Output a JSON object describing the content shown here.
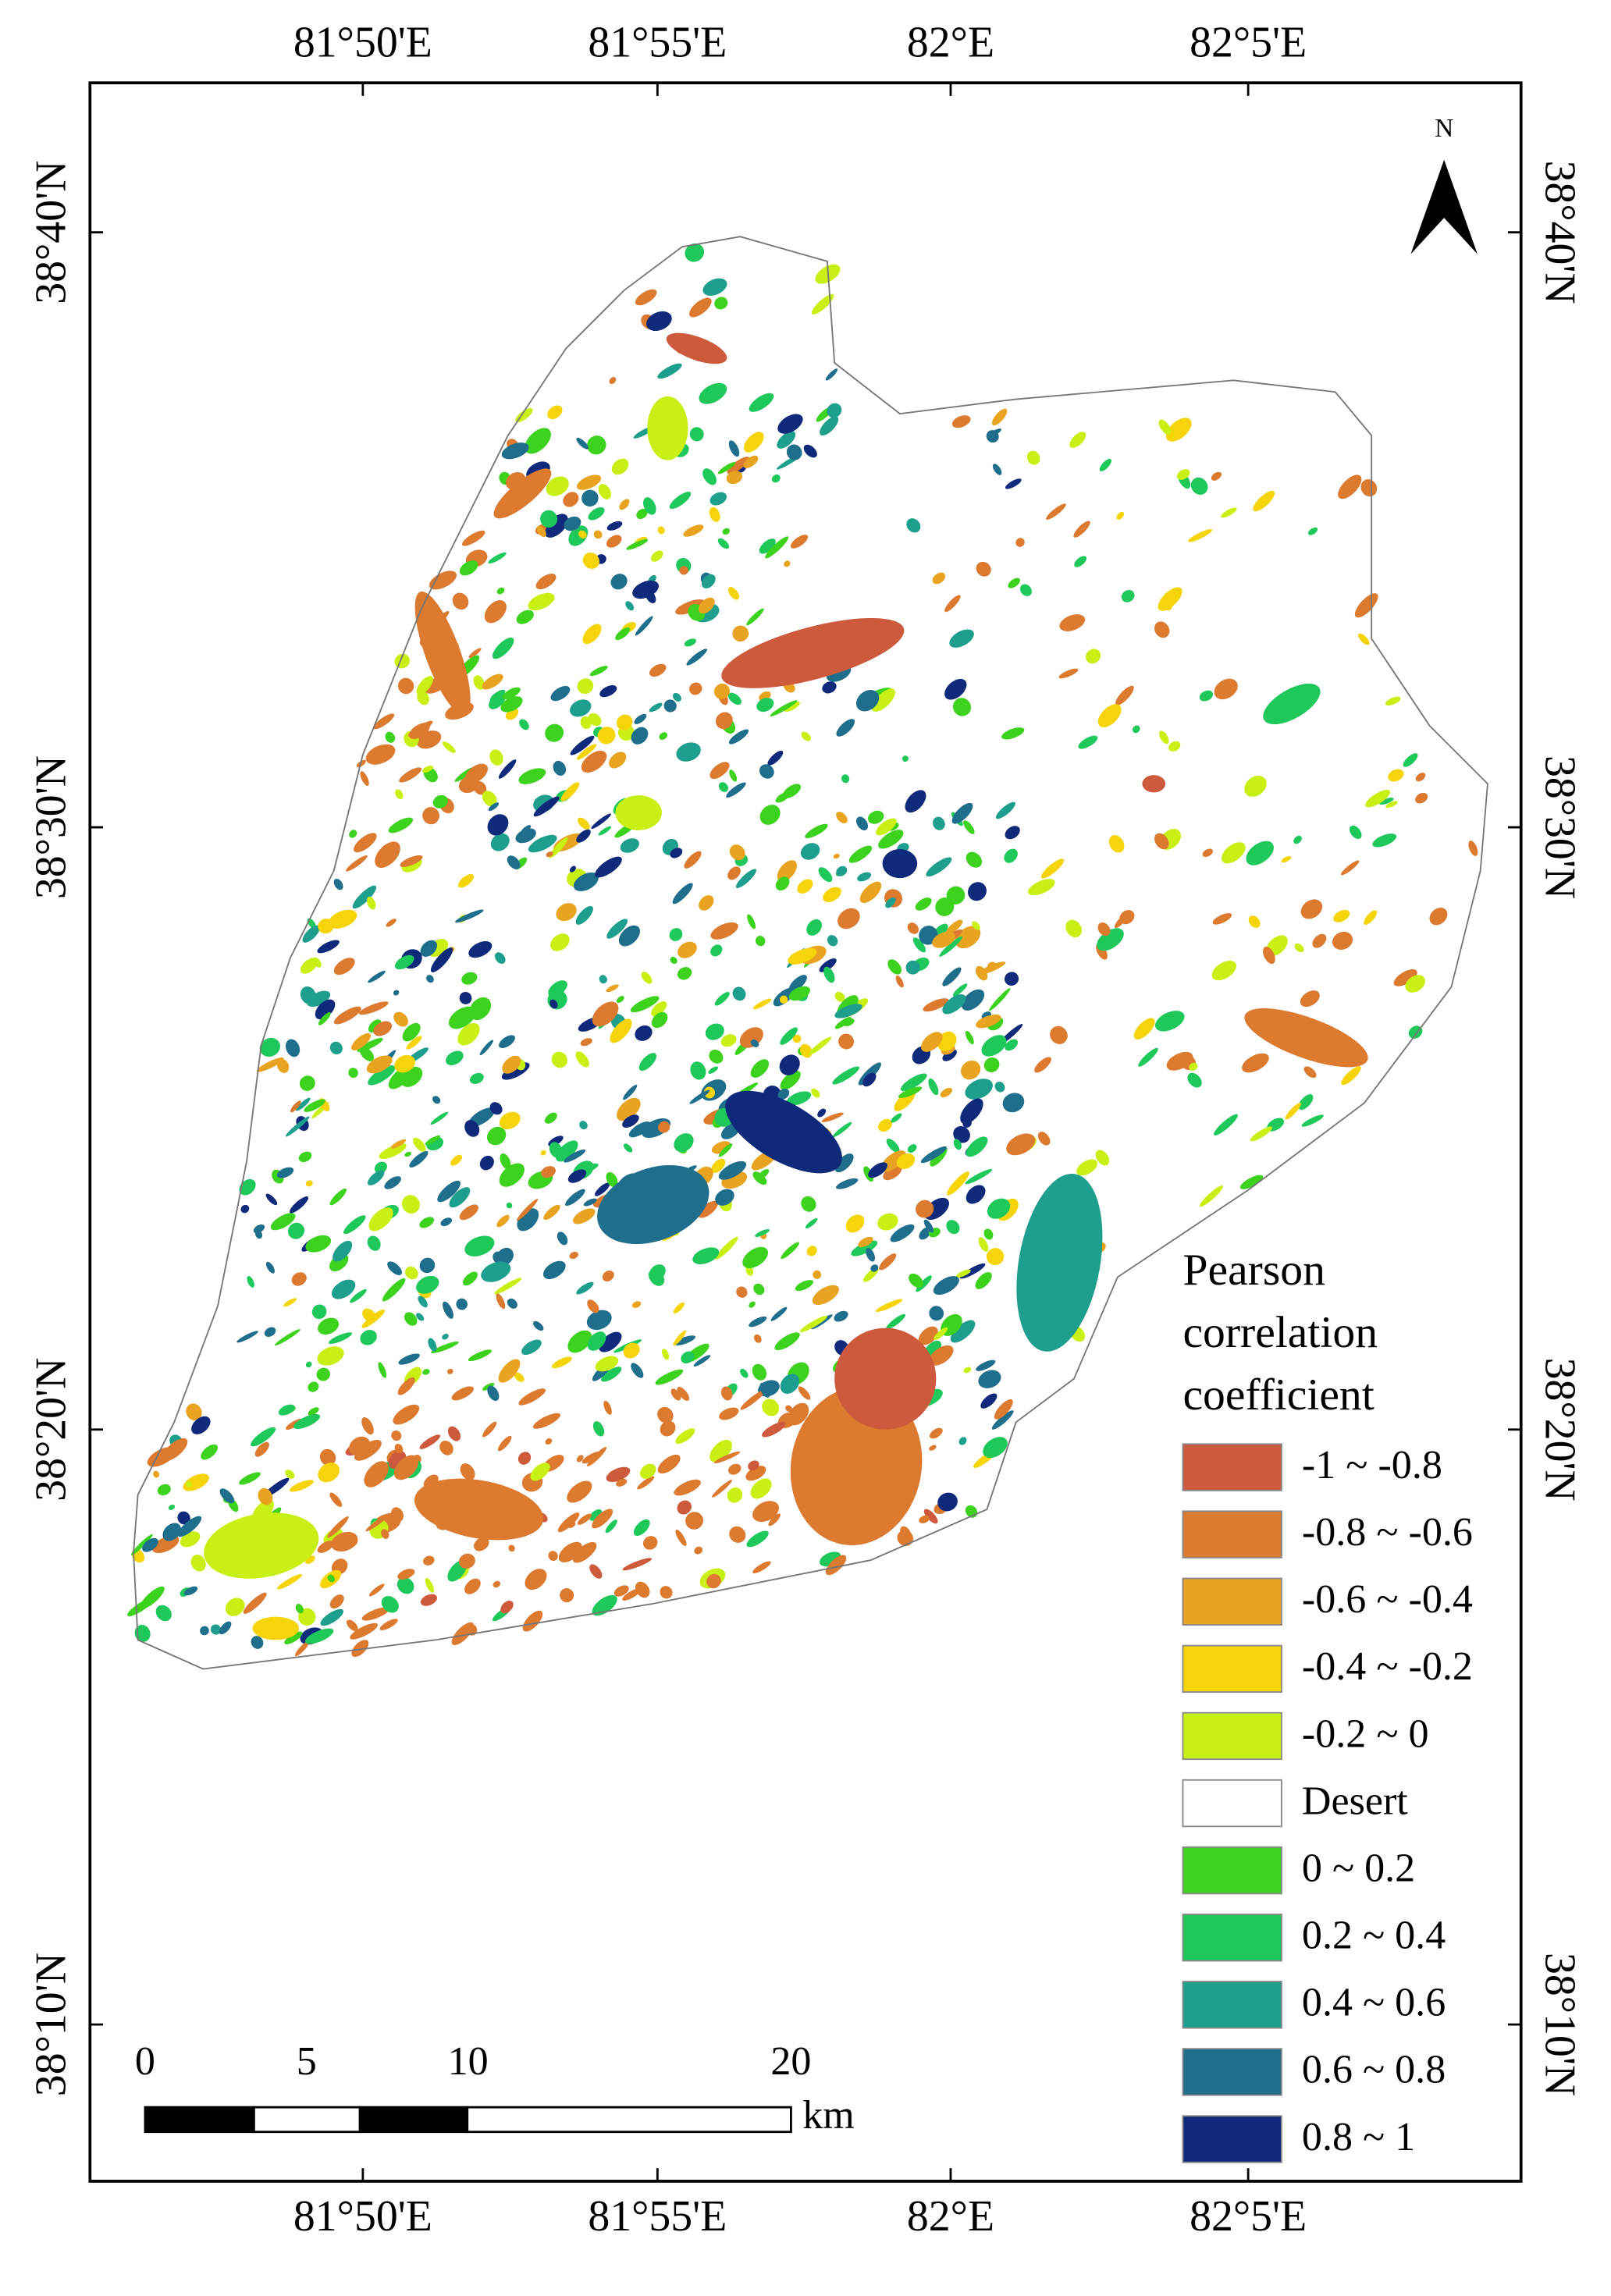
{
  "map": {
    "top_labels": [
      "81°50'E",
      "81°55'E",
      "82°E",
      "82°5'E"
    ],
    "bottom_labels": [
      "81°50'E",
      "81°55'E",
      "82°E",
      "82°5'E"
    ],
    "left_labels": [
      "38°40'N",
      "38°30'N",
      "38°20'N",
      "38°10'N"
    ],
    "right_labels": [
      "38°40'N",
      "38°30'N",
      "38°20'N",
      "38°10'N"
    ],
    "north": "N",
    "legend": {
      "title": [
        "Pearson",
        "correlation",
        "coefficient"
      ],
      "items": [
        {
          "label": "-1 ~ -0.8",
          "color": "#cd5a3c"
        },
        {
          "label": "-0.8 ~ -0.6",
          "color": "#dc7a30"
        },
        {
          "label": "-0.6 ~ -0.4",
          "color": "#e8a320"
        },
        {
          "label": "-0.4 ~ -0.2",
          "color": "#f5d40a"
        },
        {
          "label": "-0.2 ~ 0",
          "color": "#c8f014"
        },
        {
          "label": "Desert",
          "color": "#ffffff"
        },
        {
          "label": "0 ~ 0.2",
          "color": "#3cd21e"
        },
        {
          "label": "0.2 ~ 0.4",
          "color": "#1ec85a"
        },
        {
          "label": "0.4 ~ 0.6",
          "color": "#1e9e8c"
        },
        {
          "label": "0.6 ~ 0.8",
          "color": "#1e6e8c"
        },
        {
          "label": "0.8 ~ 1",
          "color": "#0f2a7a"
        }
      ]
    },
    "scale_bar": {
      "ticks": [
        0,
        5,
        10,
        20
      ],
      "unit": "km"
    }
  }
}
